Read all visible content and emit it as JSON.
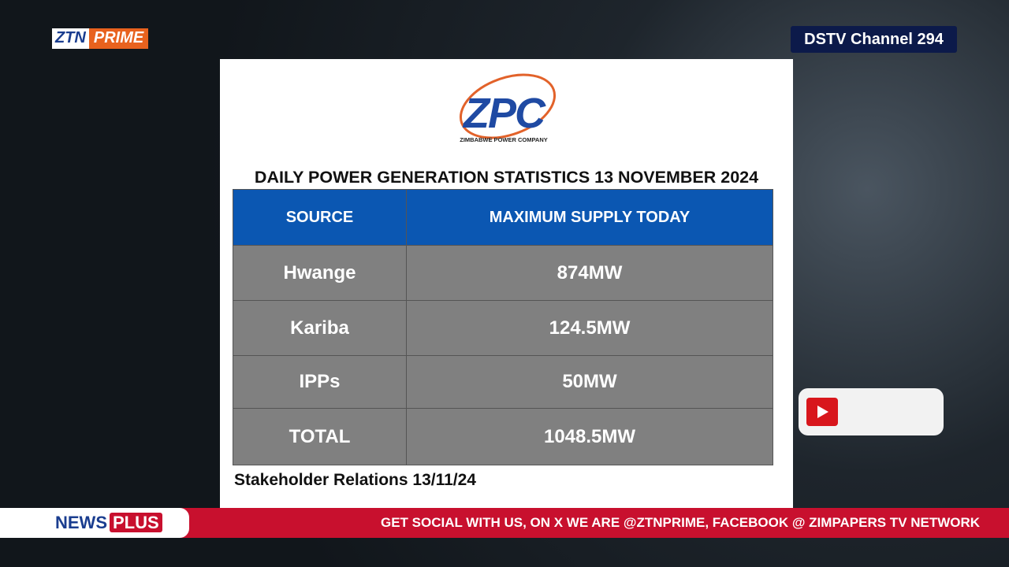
{
  "header": {
    "brand_left": "ZTN",
    "brand_right": "PRIME",
    "channel": "DSTV Channel 294"
  },
  "card": {
    "logo": {
      "mark": "ZPC",
      "caption": "ZIMBABWE POWER COMPANY"
    },
    "title": "DAILY POWER GENERATION STATISTICS 13 NOVEMBER 2024",
    "table": {
      "columns": [
        "SOURCE",
        "MAXIMUM SUPPLY TODAY"
      ],
      "rows": [
        [
          "Hwange",
          "874MW"
        ],
        [
          "Kariba",
          "124.5MW"
        ],
        [
          "IPPs",
          "50MW"
        ],
        [
          "TOTAL",
          "1048.5MW"
        ]
      ]
    },
    "footer": "Stakeholder Relations 13/11/24"
  },
  "ticker": {
    "label_left": "NEWS",
    "label_right": "PLUS",
    "text": "GET SOCIAL WITH US, ON X WE ARE @ZTNPRIME,  FACEBOOK @ ZIMPAPERS TV NETWORK"
  }
}
